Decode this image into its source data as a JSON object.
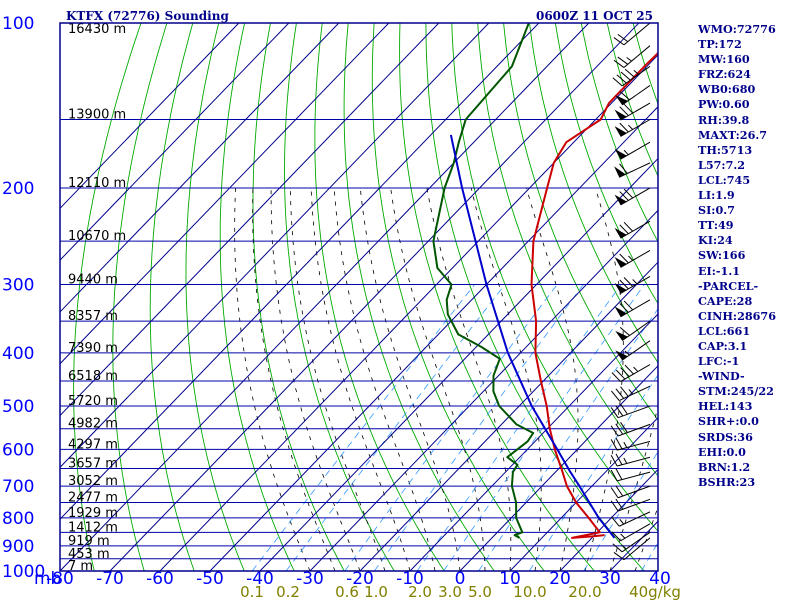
{
  "station_title": "KTFX (72776) Sounding",
  "time_title": "0600Z 11 OCT 25",
  "colors": {
    "frame": "#00008b",
    "isobar": "#0000aa",
    "isotherm": "#00008b",
    "dry_adiabat": "#00aa00",
    "moist_adiabat": "#000000",
    "mixing_ratio": "#3399ff",
    "temperature": "#cc0000",
    "dewpoint": "#005500",
    "parcel": "#0000cc",
    "wind_barb": "#000000"
  },
  "indices": [
    "WMO:72776",
    "TP:172",
    "MW:160",
    "FRZ:624",
    "WB0:680",
    "PW:0.60",
    "RH:39.8",
    "MAXT:26.7",
    "TH:5713",
    "L57:7.2",
    "LCL:745",
    "LI:1.9",
    "SI:0.7",
    "TT:49",
    "KI:24",
    "SW:166",
    "EI:-1.1",
    "-PARCEL-",
    "CAPE:28",
    "CINH:28676",
    "LCL:661",
    "CAP:3.1",
    "LFC:-1",
    "-WIND-",
    "STM:245/22",
    "HEL:143",
    "SHR+:0.0",
    "SRDS:36",
    "EHI:0.0",
    "BRN:1.2",
    "BSHR:23"
  ],
  "chart_data": {
    "type": "skew-t",
    "pressure_axis_label": "mb",
    "pressure_ticks": [
      100,
      200,
      300,
      400,
      500,
      600,
      700,
      800,
      900,
      1000
    ],
    "pressure_range": [
      100,
      1000
    ],
    "temperature_ticks": [
      -80,
      -70,
      -60,
      -50,
      -40,
      -30,
      -20,
      -10,
      0,
      10,
      20,
      30,
      40
    ],
    "temperature_range_at_surface": [
      -80,
      40
    ],
    "height_labels": [
      {
        "p": 100,
        "label": "16430 m"
      },
      {
        "p": 150,
        "label": "13900 m"
      },
      {
        "p": 200,
        "label": "12110 m"
      },
      {
        "p": 250,
        "label": "10670 m"
      },
      {
        "p": 300,
        "label": "9440 m"
      },
      {
        "p": 350,
        "label": "8357 m"
      },
      {
        "p": 400,
        "label": "7390 m"
      },
      {
        "p": 450,
        "label": "6518 m"
      },
      {
        "p": 500,
        "label": "5720 m"
      },
      {
        "p": 550,
        "label": "4982 m"
      },
      {
        "p": 600,
        "label": "4297 m"
      },
      {
        "p": 650,
        "label": "3657 m"
      },
      {
        "p": 700,
        "label": "3052 m"
      },
      {
        "p": 750,
        "label": "2477 m"
      },
      {
        "p": 800,
        "label": "1929 m"
      },
      {
        "p": 850,
        "label": "1412 m"
      },
      {
        "p": 900,
        "label": "919 m"
      },
      {
        "p": 950,
        "label": "453 m"
      },
      {
        "p": 1000,
        "label": "7 m"
      }
    ],
    "mixing_ratio_ticks": [
      "0.1",
      "0.2",
      "0.6",
      "1.0",
      "2.0",
      "3.0",
      "5.0",
      "10.0",
      "20.0",
      "40g/kg"
    ],
    "series": [
      {
        "name": "temperature",
        "points": [
          [
            860,
            22.0
          ],
          [
            865,
            19.5
          ],
          [
            870,
            16.0
          ],
          [
            850,
            20.5
          ],
          [
            800,
            15.5
          ],
          [
            750,
            10.0
          ],
          [
            700,
            5.0
          ],
          [
            650,
            0.5
          ],
          [
            600,
            -4.5
          ],
          [
            550,
            -9.5
          ],
          [
            500,
            -14.5
          ],
          [
            450,
            -20.5
          ],
          [
            400,
            -27.0
          ],
          [
            350,
            -33.0
          ],
          [
            300,
            -41.0
          ],
          [
            250,
            -49.0
          ],
          [
            200,
            -56.5
          ],
          [
            180,
            -60.0
          ],
          [
            165,
            -61.5
          ],
          [
            150,
            -59.0
          ],
          [
            140,
            -60.5
          ],
          [
            120,
            -60.5
          ],
          [
            100,
            -60.0
          ]
        ]
      },
      {
        "name": "dewpoint",
        "points": [
          [
            870,
            5.5
          ],
          [
            860,
            4.0
          ],
          [
            850,
            5.0
          ],
          [
            800,
            1.0
          ],
          [
            750,
            -2.0
          ],
          [
            700,
            -6.0
          ],
          [
            660,
            -8.5
          ],
          [
            640,
            -9.0
          ],
          [
            620,
            -12.5
          ],
          [
            600,
            -12.0
          ],
          [
            580,
            -11.5
          ],
          [
            560,
            -12.0
          ],
          [
            540,
            -17.0
          ],
          [
            500,
            -24.0
          ],
          [
            470,
            -28.0
          ],
          [
            440,
            -31.0
          ],
          [
            410,
            -33.0
          ],
          [
            390,
            -39.0
          ],
          [
            370,
            -46.0
          ],
          [
            340,
            -52.0
          ],
          [
            320,
            -55.0
          ],
          [
            300,
            -57.0
          ],
          [
            280,
            -63.0
          ],
          [
            250,
            -69.0
          ],
          [
            200,
            -77.0
          ],
          [
            180,
            -80.0
          ],
          [
            165,
            -83.0
          ],
          [
            150,
            -86.0
          ],
          [
            120,
            -87.0
          ],
          [
            100,
            -92.0
          ]
        ]
      },
      {
        "name": "parcel",
        "points": [
          [
            870,
            24.5
          ],
          [
            800,
            17.5
          ],
          [
            700,
            7.5
          ],
          [
            660,
            3.0
          ],
          [
            600,
            -4.0
          ],
          [
            500,
            -17.5
          ],
          [
            400,
            -32.5
          ],
          [
            300,
            -50.0
          ],
          [
            200,
            -73.5
          ],
          [
            160,
            -86.0
          ]
        ]
      }
    ],
    "wind_barbs": [
      {
        "p": 100,
        "dir": 230,
        "spd": 20
      },
      {
        "p": 110,
        "dir": 230,
        "spd": 25
      },
      {
        "p": 120,
        "dir": 235,
        "spd": 45
      },
      {
        "p": 130,
        "dir": 235,
        "spd": 60
      },
      {
        "p": 140,
        "dir": 240,
        "spd": 70
      },
      {
        "p": 150,
        "dir": 240,
        "spd": 65
      },
      {
        "p": 165,
        "dir": 240,
        "spd": 55
      },
      {
        "p": 180,
        "dir": 245,
        "spd": 60
      },
      {
        "p": 200,
        "dir": 240,
        "spd": 70
      },
      {
        "p": 230,
        "dir": 240,
        "spd": 70
      },
      {
        "p": 260,
        "dir": 240,
        "spd": 65
      },
      {
        "p": 290,
        "dir": 240,
        "spd": 75
      },
      {
        "p": 320,
        "dir": 240,
        "spd": 70
      },
      {
        "p": 350,
        "dir": 235,
        "spd": 60
      },
      {
        "p": 380,
        "dir": 235,
        "spd": 55
      },
      {
        "p": 420,
        "dir": 240,
        "spd": 45
      },
      {
        "p": 460,
        "dir": 245,
        "spd": 35
      },
      {
        "p": 500,
        "dir": 250,
        "spd": 30
      },
      {
        "p": 540,
        "dir": 250,
        "spd": 30
      },
      {
        "p": 580,
        "dir": 255,
        "spd": 25
      },
      {
        "p": 620,
        "dir": 255,
        "spd": 25
      },
      {
        "p": 660,
        "dir": 255,
        "spd": 20
      },
      {
        "p": 700,
        "dir": 250,
        "spd": 20
      },
      {
        "p": 740,
        "dir": 250,
        "spd": 20
      },
      {
        "p": 780,
        "dir": 245,
        "spd": 15
      },
      {
        "p": 820,
        "dir": 240,
        "spd": 15
      },
      {
        "p": 850,
        "dir": 235,
        "spd": 15
      },
      {
        "p": 870,
        "dir": 230,
        "spd": 10
      }
    ]
  }
}
